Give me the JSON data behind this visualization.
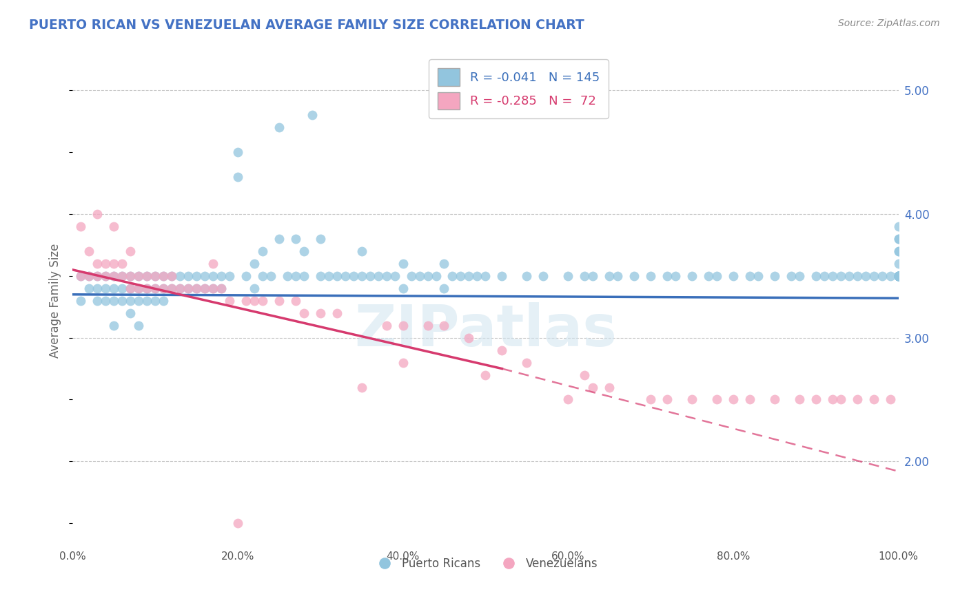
{
  "title": "PUERTO RICAN VS VENEZUELAN AVERAGE FAMILY SIZE CORRELATION CHART",
  "source": "Source: ZipAtlas.com",
  "ylabel": "Average Family Size",
  "xmin": 0.0,
  "xmax": 100.0,
  "ymin": 1.3,
  "ymax": 5.3,
  "yticks": [
    2.0,
    3.0,
    4.0,
    5.0
  ],
  "xtick_labels": [
    "0.0%",
    "20.0%",
    "40.0%",
    "60.0%",
    "80.0%",
    "100.0%"
  ],
  "xtick_values": [
    0,
    20,
    40,
    60,
    80,
    100
  ],
  "blue_color": "#92c5de",
  "pink_color": "#f4a6c0",
  "blue_line_color": "#3a6fba",
  "pink_line_color": "#d63a6e",
  "r_blue": -0.041,
  "n_blue": 145,
  "r_pink": -0.285,
  "n_pink": 72,
  "legend_label_blue": "Puerto Ricans",
  "legend_label_pink": "Venezuelans",
  "title_color": "#4472c4",
  "watermark": "ZIPatlas",
  "blue_trend_start_y": 3.35,
  "blue_trend_end_y": 3.32,
  "pink_trend_start_y": 3.55,
  "pink_solid_end_x": 52,
  "pink_solid_end_y": 2.75,
  "pink_dashed_end_x": 100,
  "pink_dashed_end_y": 1.92,
  "blue_scatter_x": [
    1,
    1,
    2,
    2,
    3,
    3,
    3,
    4,
    4,
    4,
    5,
    5,
    5,
    5,
    6,
    6,
    6,
    7,
    7,
    7,
    7,
    8,
    8,
    8,
    8,
    9,
    9,
    9,
    10,
    10,
    10,
    11,
    11,
    11,
    12,
    12,
    13,
    13,
    14,
    14,
    15,
    15,
    16,
    16,
    17,
    17,
    18,
    18,
    19,
    20,
    20,
    21,
    22,
    22,
    23,
    23,
    24,
    25,
    25,
    26,
    27,
    27,
    28,
    28,
    29,
    30,
    30,
    31,
    32,
    33,
    34,
    35,
    35,
    36,
    37,
    38,
    39,
    40,
    40,
    41,
    42,
    43,
    44,
    45,
    45,
    46,
    47,
    48,
    49,
    50,
    52,
    55,
    57,
    60,
    62,
    63,
    65,
    66,
    68,
    70,
    72,
    73,
    75,
    77,
    78,
    80,
    82,
    83,
    85,
    87,
    88,
    90,
    91,
    92,
    93,
    94,
    95,
    96,
    97,
    98,
    99,
    100,
    100,
    100,
    100,
    100,
    100,
    100,
    100,
    100,
    100,
    100,
    100,
    100,
    100,
    100,
    100,
    100,
    100,
    100,
    100,
    100,
    100,
    100,
    100
  ],
  "blue_scatter_y": [
    3.3,
    3.5,
    3.4,
    3.5,
    3.4,
    3.5,
    3.3,
    3.5,
    3.4,
    3.3,
    3.5,
    3.4,
    3.3,
    3.1,
    3.5,
    3.4,
    3.3,
    3.5,
    3.4,
    3.3,
    3.2,
    3.5,
    3.4,
    3.3,
    3.1,
    3.5,
    3.4,
    3.3,
    3.5,
    3.4,
    3.3,
    3.5,
    3.4,
    3.3,
    3.5,
    3.4,
    3.5,
    3.4,
    3.5,
    3.4,
    3.5,
    3.4,
    3.5,
    3.4,
    3.5,
    3.4,
    3.5,
    3.4,
    3.5,
    4.5,
    4.3,
    3.5,
    3.6,
    3.4,
    3.7,
    3.5,
    3.5,
    4.7,
    3.8,
    3.5,
    3.8,
    3.5,
    3.7,
    3.5,
    4.8,
    3.8,
    3.5,
    3.5,
    3.5,
    3.5,
    3.5,
    3.7,
    3.5,
    3.5,
    3.5,
    3.5,
    3.5,
    3.6,
    3.4,
    3.5,
    3.5,
    3.5,
    3.5,
    3.6,
    3.4,
    3.5,
    3.5,
    3.5,
    3.5,
    3.5,
    3.5,
    3.5,
    3.5,
    3.5,
    3.5,
    3.5,
    3.5,
    3.5,
    3.5,
    3.5,
    3.5,
    3.5,
    3.5,
    3.5,
    3.5,
    3.5,
    3.5,
    3.5,
    3.5,
    3.5,
    3.5,
    3.5,
    3.5,
    3.5,
    3.5,
    3.5,
    3.5,
    3.5,
    3.5,
    3.5,
    3.5,
    3.8,
    3.7,
    3.5,
    3.5,
    3.5,
    3.5,
    3.5,
    3.5,
    3.5,
    3.5,
    3.8,
    3.7,
    3.5,
    3.9,
    3.5,
    3.6,
    3.5,
    3.5,
    3.5,
    3.5,
    3.5,
    3.5,
    3.5,
    3.5
  ],
  "pink_scatter_x": [
    1,
    1,
    2,
    2,
    3,
    3,
    3,
    4,
    4,
    5,
    5,
    5,
    6,
    6,
    7,
    7,
    7,
    8,
    8,
    9,
    9,
    10,
    10,
    11,
    11,
    12,
    12,
    13,
    14,
    15,
    16,
    17,
    17,
    18,
    19,
    20,
    21,
    22,
    23,
    25,
    27,
    28,
    30,
    32,
    35,
    38,
    40,
    40,
    43,
    45,
    48,
    50,
    52,
    55,
    60,
    62,
    63,
    65,
    70,
    72,
    75,
    78,
    80,
    82,
    85,
    88,
    90,
    92,
    93,
    95,
    97,
    99
  ],
  "pink_scatter_y": [
    3.5,
    3.9,
    3.5,
    3.7,
    3.5,
    3.6,
    4.0,
    3.5,
    3.6,
    3.5,
    3.6,
    3.9,
    3.5,
    3.6,
    3.4,
    3.5,
    3.7,
    3.4,
    3.5,
    3.4,
    3.5,
    3.4,
    3.5,
    3.4,
    3.5,
    3.4,
    3.5,
    3.4,
    3.4,
    3.4,
    3.4,
    3.4,
    3.6,
    3.4,
    3.3,
    1.5,
    3.3,
    3.3,
    3.3,
    3.3,
    3.3,
    3.2,
    3.2,
    3.2,
    2.6,
    3.1,
    3.1,
    2.8,
    3.1,
    3.1,
    3.0,
    2.7,
    2.9,
    2.8,
    2.5,
    2.7,
    2.6,
    2.6,
    2.5,
    2.5,
    2.5,
    2.5,
    2.5,
    2.5,
    2.5,
    2.5,
    2.5,
    2.5,
    2.5,
    2.5,
    2.5,
    2.5
  ]
}
